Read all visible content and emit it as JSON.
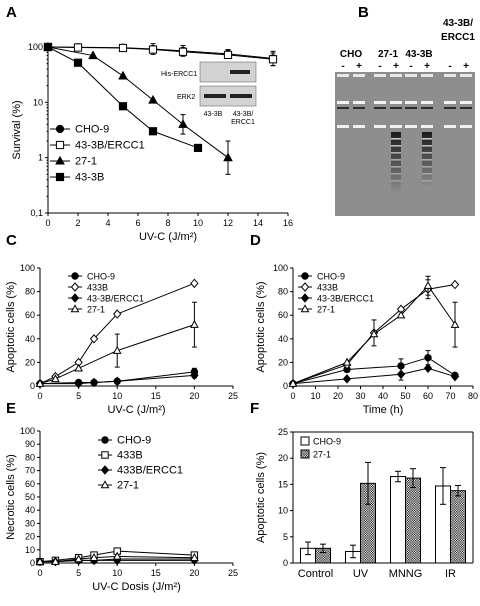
{
  "panels": [
    "A",
    "B",
    "C",
    "D",
    "E",
    "F"
  ],
  "gel": {
    "lanes": [
      "CHO",
      "27-1",
      "43-3B",
      "43-3B/\nERCC1"
    ],
    "signs": [
      "-",
      "+",
      "-",
      "+",
      "-",
      "+",
      "-",
      "+"
    ]
  },
  "colors": {
    "line": "#000000",
    "open_fill": "#ffffff",
    "gel_bg": "#8e8e8e",
    "hatched": "#222222"
  },
  "chart_data": [
    {
      "panel": "A",
      "type": "line",
      "xlabel": "UV-C (J/m²)",
      "ylabel": "Survival (%)",
      "xlim": [
        0,
        16
      ],
      "ylim": [
        0.1,
        100
      ],
      "yscale": "log",
      "xticks": [
        0,
        2,
        4,
        6,
        8,
        10,
        12,
        14,
        16
      ],
      "yticks": [
        0.1,
        1,
        10,
        100
      ],
      "yticklabels": [
        "0,1",
        "1",
        "10",
        "100"
      ],
      "legend": "bottom-left",
      "series": [
        {
          "name": "CHO-9",
          "marker": "circle",
          "x": [
            0,
            2,
            5,
            7,
            9,
            12,
            15
          ],
          "y": [
            100,
            99,
            97,
            92,
            85,
            75,
            62
          ]
        },
        {
          "name": "43-3B/ERCC1",
          "marker": "open-square",
          "x": [
            0,
            2,
            5,
            7,
            9,
            12,
            15
          ],
          "y": [
            100,
            98,
            96,
            90,
            82,
            72,
            60
          ]
        },
        {
          "name": "27-1",
          "marker": "triangle",
          "x": [
            0,
            3,
            5,
            7,
            9,
            12
          ],
          "y": [
            100,
            70,
            30,
            11,
            4,
            1
          ]
        },
        {
          "name": "43-3B",
          "marker": "square",
          "x": [
            0,
            2,
            5,
            7,
            10
          ],
          "y": [
            100,
            52,
            8.5,
            3,
            1.5
          ]
        }
      ],
      "inset": {
        "rows": [
          "His-ERCC1",
          "ERK2"
        ],
        "cols": [
          "43-3B",
          "43-3B/\nERCC1"
        ]
      }
    },
    {
      "panel": "C",
      "type": "line",
      "xlabel": "UV-C (J/m²)",
      "ylabel": "Apoptotic cells (%)",
      "xlim": [
        0,
        25
      ],
      "ylim": [
        0,
        100
      ],
      "xticks": [
        0,
        5,
        10,
        15,
        20,
        25
      ],
      "yticks": [
        0,
        20,
        40,
        60,
        80,
        100
      ],
      "legend": "top-left",
      "series": [
        {
          "name": "CHO-9",
          "marker": "circle",
          "x": [
            0,
            5,
            7,
            10,
            20
          ],
          "y": [
            2,
            3,
            3,
            4,
            12
          ]
        },
        {
          "name": "433B",
          "marker": "open-diamond",
          "x": [
            0,
            2,
            5,
            7,
            10,
            20
          ],
          "y": [
            2,
            8,
            20,
            40,
            61,
            87
          ]
        },
        {
          "name": "43-3B/ERCC1",
          "marker": "diamond",
          "x": [
            0,
            5,
            7,
            10,
            20
          ],
          "y": [
            2,
            2,
            3,
            4,
            9
          ]
        },
        {
          "name": "27-1",
          "marker": "open-triangle",
          "x": [
            0,
            2,
            5,
            10,
            20
          ],
          "y": [
            2,
            6,
            15,
            30,
            52
          ]
        }
      ]
    },
    {
      "panel": "D",
      "type": "line",
      "xlabel": "Time (h)",
      "ylabel": "Apoptotic cells (%)",
      "xlim": [
        0,
        80
      ],
      "ylim": [
        0,
        100
      ],
      "xticks": [
        0,
        10,
        20,
        30,
        40,
        50,
        60,
        70,
        80
      ],
      "yticks": [
        0,
        20,
        40,
        60,
        80,
        100
      ],
      "legend": "top-left",
      "series": [
        {
          "name": "CHO-9",
          "marker": "circle",
          "x": [
            0,
            24,
            48,
            60,
            72
          ],
          "y": [
            2,
            14,
            17,
            24,
            9
          ]
        },
        {
          "name": "433B",
          "marker": "open-diamond",
          "x": [
            0,
            24,
            36,
            48,
            60,
            72
          ],
          "y": [
            2,
            18,
            45,
            65,
            82,
            86
          ]
        },
        {
          "name": "43-3B/ERCC1",
          "marker": "diamond",
          "x": [
            0,
            24,
            48,
            60,
            72
          ],
          "y": [
            2,
            6,
            10,
            15,
            8
          ]
        },
        {
          "name": "27-1",
          "marker": "open-triangle",
          "x": [
            0,
            24,
            36,
            48,
            60,
            72
          ],
          "y": [
            2,
            20,
            44,
            60,
            85,
            52
          ]
        }
      ]
    },
    {
      "panel": "E",
      "type": "line",
      "xlabel": "UV-C Dosis (J/m²)",
      "ylabel": "Necrotic cells (%)",
      "xlim": [
        0,
        25
      ],
      "ylim": [
        0,
        100
      ],
      "xticks": [
        0,
        5,
        10,
        15,
        20,
        25
      ],
      "yticks": [
        0,
        10,
        20,
        30,
        40,
        50,
        60,
        70,
        80,
        90,
        100
      ],
      "legend": "top-right",
      "series": [
        {
          "name": "CHO-9",
          "marker": "circle",
          "x": [
            0,
            2,
            5,
            7,
            10,
            20
          ],
          "y": [
            1,
            1,
            2,
            2,
            3,
            3
          ]
        },
        {
          "name": "433B",
          "marker": "open-square",
          "x": [
            0,
            2,
            5,
            7,
            10,
            20
          ],
          "y": [
            1,
            2,
            4,
            6,
            9,
            6
          ]
        },
        {
          "name": "433B/ERCC1",
          "marker": "diamond",
          "x": [
            0,
            2,
            5,
            7,
            10,
            20
          ],
          "y": [
            1,
            1,
            2,
            2,
            2,
            2
          ]
        },
        {
          "name": "27-1",
          "marker": "open-triangle",
          "x": [
            0,
            2,
            5,
            7,
            10,
            20
          ],
          "y": [
            1,
            1,
            3,
            4,
            5,
            4
          ]
        }
      ]
    },
    {
      "panel": "F",
      "type": "bar",
      "ylabel": "Apoptotic cells (%)",
      "categories": [
        "Control",
        "UV",
        "MNNG",
        "IR"
      ],
      "ylim": [
        0,
        25
      ],
      "yticks": [
        0,
        5,
        10,
        15,
        20,
        25
      ],
      "legend": "top-left",
      "series": [
        {
          "name": "CHO-9",
          "style": "open",
          "values": [
            2.8,
            2.2,
            16.5,
            14.7
          ],
          "errors": [
            1.2,
            1.2,
            1.0,
            3.5
          ]
        },
        {
          "name": "27-1",
          "style": "hatched",
          "values": [
            2.8,
            15.2,
            16.2,
            13.8
          ],
          "errors": [
            0.8,
            4.0,
            1.8,
            1.0
          ]
        }
      ]
    }
  ]
}
